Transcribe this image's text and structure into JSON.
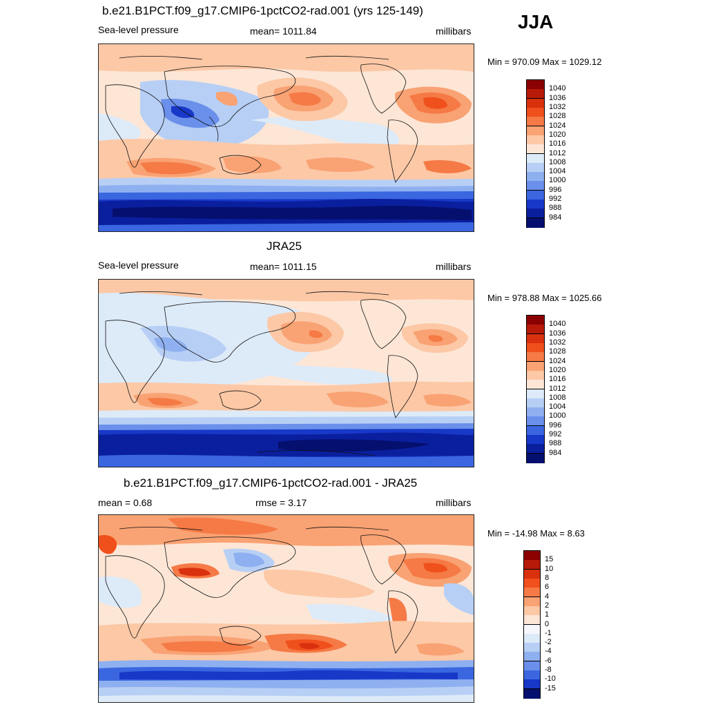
{
  "season": "JJA",
  "panels": [
    {
      "title": "b.e21.B1PCT.f09_g17.CMIP6-1pctCO2-rad.001 (yrs 125-149)",
      "left_label": "Sea-level pressure",
      "center_label": "mean= 1011.84",
      "right_label": "millibars",
      "minmax": "Min = 970.09 Max = 1029.12",
      "colorbar_labels": [
        "1040",
        "1036",
        "1032",
        "1028",
        "1024",
        "1020",
        "1016",
        "1012",
        "1008",
        "1004",
        "1000",
        "996",
        "992",
        "988",
        "984"
      ],
      "colorbar_colors": [
        "#8b0000",
        "#b81a0a",
        "#d9300e",
        "#f0501c",
        "#f57a45",
        "#f9a273",
        "#fcc8a6",
        "#fde6d6",
        "#ddeaf8",
        "#b7cff5",
        "#8fb0f0",
        "#6a90eb",
        "#3a66e0",
        "#1838c8",
        "#0a1f9e",
        "#050f6e"
      ]
    },
    {
      "title": "JRA25",
      "left_label": "Sea-level pressure",
      "center_label": "mean= 1011.15",
      "right_label": "millibars",
      "minmax": "Min = 978.88 Max = 1025.66",
      "colorbar_labels": [
        "1040",
        "1036",
        "1032",
        "1028",
        "1024",
        "1020",
        "1016",
        "1012",
        "1008",
        "1004",
        "1000",
        "996",
        "992",
        "988",
        "984"
      ],
      "colorbar_colors": [
        "#8b0000",
        "#b81a0a",
        "#d9300e",
        "#f0501c",
        "#f57a45",
        "#f9a273",
        "#fcc8a6",
        "#fde6d6",
        "#ddeaf8",
        "#b7cff5",
        "#8fb0f0",
        "#6a90eb",
        "#3a66e0",
        "#1838c8",
        "#0a1f9e",
        "#050f6e"
      ]
    },
    {
      "title": "b.e21.B1PCT.f09_g17.CMIP6-1pctCO2-rad.001 - JRA25",
      "left_label": "mean =   0.68",
      "center_label": "rmse =   3.17",
      "right_label": "millibars",
      "minmax": "Min = -14.98 Max =   8.63",
      "colorbar_labels": [
        "15",
        "10",
        "8",
        "6",
        "4",
        "2",
        "1",
        "0",
        "-1",
        "-2",
        "-4",
        "-6",
        "-8",
        "-10",
        "-15"
      ],
      "colorbar_colors": [
        "#8b0000",
        "#b81a0a",
        "#d9300e",
        "#f0501c",
        "#f57a45",
        "#f9a273",
        "#fcc8a6",
        "#fde6d6",
        "#f5f7fd",
        "#ddeaf8",
        "#b7cff5",
        "#8fb0f0",
        "#6a90eb",
        "#3a66e0",
        "#1838c8",
        "#050f6e"
      ]
    }
  ]
}
